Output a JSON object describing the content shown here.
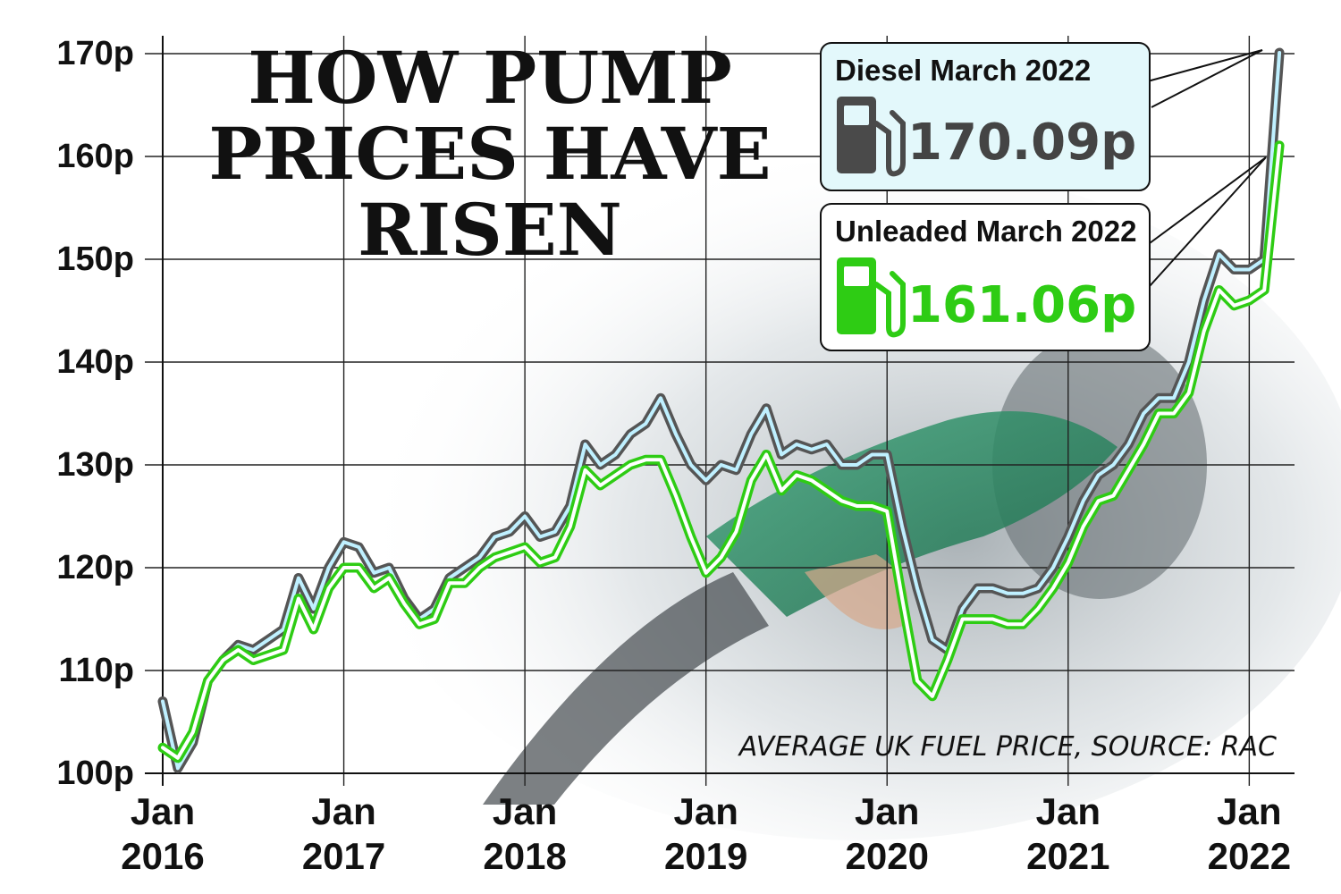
{
  "colors": {
    "diesel_line": "#555555",
    "diesel_inner": "#bff0ff",
    "unleaded_line": "#2ecc14",
    "callout_diesel_bg": "#e3f8fb",
    "callout_unleaded_bg": "#ffffff",
    "grid": "#222222",
    "photo_bg": "#dde3e6"
  },
  "icons": {
    "diesel": "fuel-pump-icon",
    "unleaded": "fuel-pump-icon"
  },
  "chart_data": {
    "type": "line",
    "title_lines": [
      "HOW PUMP",
      "PRICES HAVE",
      "RISEN"
    ],
    "source": "AVERAGE UK FUEL PRICE, SOURCE: RAC",
    "y_tick_labels": [
      "170p",
      "160p",
      "150p",
      "140p",
      "130p",
      "120p",
      "110p",
      "100p"
    ],
    "y_ticks": [
      170,
      160,
      150,
      140,
      130,
      120,
      110,
      100
    ],
    "x_tick_labels": [
      {
        "month": "Jan",
        "year": "2016"
      },
      {
        "month": "Jan",
        "year": "2017"
      },
      {
        "month": "Jan",
        "year": "2018"
      },
      {
        "month": "Jan",
        "year": "2019"
      },
      {
        "month": "Jan",
        "year": "2020"
      },
      {
        "month": "Jan",
        "year": "2021"
      },
      {
        "month": "Jan",
        "year": "2022"
      }
    ],
    "ylim": [
      100,
      170
    ],
    "grid": true,
    "series": [
      {
        "name": "Diesel",
        "x": [
          "2016-01",
          "2016-02",
          "2016-03",
          "2016-04",
          "2016-05",
          "2016-06",
          "2016-07",
          "2016-08",
          "2016-09",
          "2016-10",
          "2016-11",
          "2016-12",
          "2017-01",
          "2017-02",
          "2017-03",
          "2017-04",
          "2017-05",
          "2017-06",
          "2017-07",
          "2017-08",
          "2017-09",
          "2017-10",
          "2017-11",
          "2017-12",
          "2018-01",
          "2018-02",
          "2018-03",
          "2018-04",
          "2018-05",
          "2018-06",
          "2018-07",
          "2018-08",
          "2018-09",
          "2018-10",
          "2018-11",
          "2018-12",
          "2019-01",
          "2019-02",
          "2019-03",
          "2019-04",
          "2019-05",
          "2019-06",
          "2019-07",
          "2019-08",
          "2019-09",
          "2019-10",
          "2019-11",
          "2019-12",
          "2020-01",
          "2020-02",
          "2020-03",
          "2020-04",
          "2020-05",
          "2020-06",
          "2020-07",
          "2020-08",
          "2020-09",
          "2020-10",
          "2020-11",
          "2020-12",
          "2021-01",
          "2021-02",
          "2021-03",
          "2021-04",
          "2021-05",
          "2021-06",
          "2021-07",
          "2021-08",
          "2021-09",
          "2021-10",
          "2021-11",
          "2021-12",
          "2022-01",
          "2022-02",
          "2022-03"
        ],
        "values": [
          107,
          100.5,
          103,
          109,
          111,
          112.5,
          112,
          113,
          114,
          119,
          116,
          120,
          122.5,
          122,
          119.5,
          120,
          117,
          115,
          116,
          119,
          120,
          121,
          123,
          123.5,
          125,
          123,
          123.5,
          126,
          132,
          130,
          131,
          133,
          134,
          136.5,
          133,
          130,
          128.5,
          130,
          129.5,
          133,
          135.5,
          131,
          132,
          131.5,
          132,
          130,
          130,
          131,
          131,
          124,
          118,
          113,
          112,
          116,
          118,
          118,
          117.5,
          117.5,
          118,
          120,
          123,
          126.5,
          129,
          130,
          132,
          135,
          136.5,
          136.5,
          140,
          146,
          150.5,
          149,
          149,
          150,
          170.09
        ]
      },
      {
        "name": "Unleaded",
        "x": [
          "2016-01",
          "2016-02",
          "2016-03",
          "2016-04",
          "2016-05",
          "2016-06",
          "2016-07",
          "2016-08",
          "2016-09",
          "2016-10",
          "2016-11",
          "2016-12",
          "2017-01",
          "2017-02",
          "2017-03",
          "2017-04",
          "2017-05",
          "2017-06",
          "2017-07",
          "2017-08",
          "2017-09",
          "2017-10",
          "2017-11",
          "2017-12",
          "2018-01",
          "2018-02",
          "2018-03",
          "2018-04",
          "2018-05",
          "2018-06",
          "2018-07",
          "2018-08",
          "2018-09",
          "2018-10",
          "2018-11",
          "2018-12",
          "2019-01",
          "2019-02",
          "2019-03",
          "2019-04",
          "2019-05",
          "2019-06",
          "2019-07",
          "2019-08",
          "2019-09",
          "2019-10",
          "2019-11",
          "2019-12",
          "2020-01",
          "2020-02",
          "2020-03",
          "2020-04",
          "2020-05",
          "2020-06",
          "2020-07",
          "2020-08",
          "2020-09",
          "2020-10",
          "2020-11",
          "2020-12",
          "2021-01",
          "2021-02",
          "2021-03",
          "2021-04",
          "2021-05",
          "2021-06",
          "2021-07",
          "2021-08",
          "2021-09",
          "2021-10",
          "2021-11",
          "2021-12",
          "2022-01",
          "2022-02",
          "2022-03"
        ],
        "values": [
          102.5,
          101.5,
          104,
          109,
          111,
          112,
          111,
          111.5,
          112,
          117,
          114,
          118,
          120,
          120,
          118,
          119,
          116.5,
          114.5,
          115,
          118.5,
          118.5,
          120,
          121,
          121.5,
          122,
          120.5,
          121,
          124,
          129.5,
          128,
          129,
          130,
          130.5,
          130.5,
          127,
          123,
          119.5,
          121,
          123.5,
          128.5,
          131,
          127.5,
          129,
          128.5,
          127.5,
          126.5,
          126,
          126,
          125.5,
          117,
          109,
          107.5,
          111,
          115,
          115,
          115,
          114.5,
          114.5,
          116,
          118,
          120.5,
          124,
          126.5,
          127,
          129.5,
          132,
          135,
          135,
          137,
          143,
          147,
          145.5,
          146,
          147,
          161.06
        ]
      }
    ],
    "callouts": [
      {
        "series": "Diesel",
        "heading": "Diesel March 2022",
        "value": "170.09p"
      },
      {
        "series": "Unleaded",
        "heading": "Unleaded March 2022",
        "value": "161.06p"
      }
    ]
  }
}
